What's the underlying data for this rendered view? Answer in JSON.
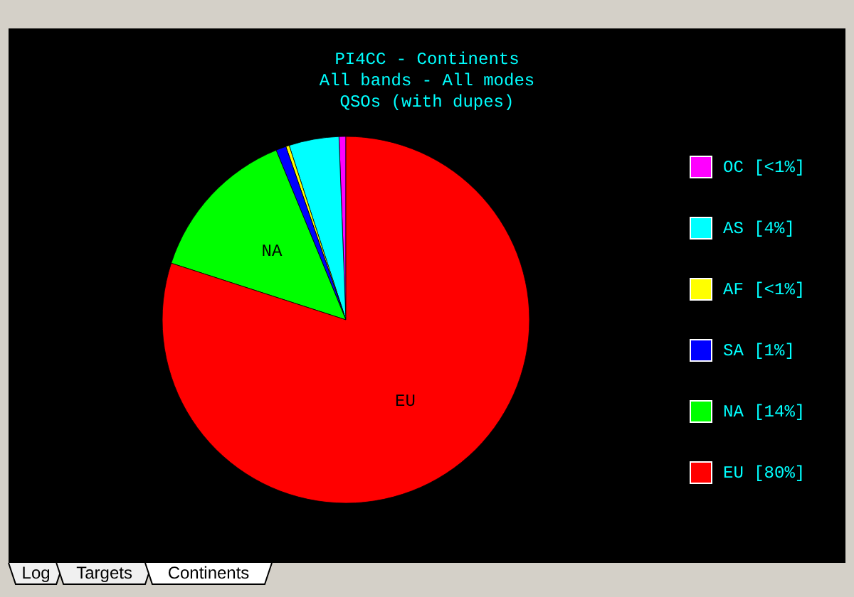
{
  "chart_data": {
    "type": "pie",
    "title": "PI4CC - Continents",
    "subtitle": "All bands - All modes\nQSOs (with dupes)",
    "categories": [
      "OC [<1%]",
      "AS [4%]",
      "AF [<1%]",
      "SA [1%]",
      "NA [14%]",
      "EU [80%]"
    ],
    "values": [
      0.6,
      4.4,
      0.3,
      0.9,
      13.8,
      80
    ],
    "colors": [
      "#ff00ff",
      "#00ffff",
      "#ffff00",
      "#0000ff",
      "#00ff00",
      "#ff0000"
    ],
    "legend": "right",
    "annotations": [
      {
        "text": "NA",
        "x": "NA [14%]"
      },
      {
        "text": "EU",
        "x": "EU [80%]"
      },
      "Log",
      "Targets",
      "Continents"
    ]
  }
}
